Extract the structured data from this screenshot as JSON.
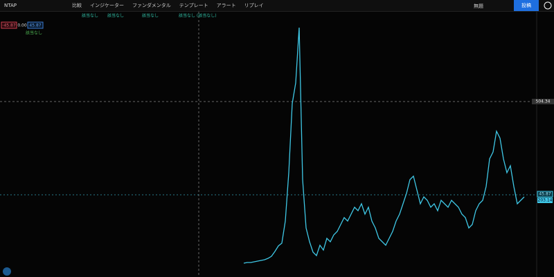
{
  "toolbar": {
    "symbol": "NTAP",
    "items": [
      "比較",
      "インジケーター",
      "ファンダメンタル",
      "テンプレート",
      "アラート",
      "リプレイ"
    ],
    "layout_name": "無題",
    "publish": "投稿"
  },
  "legend": {
    "sell": "-45.87",
    "spread": "0.00",
    "buy": "45.87",
    "indicator_values": [
      "該当なし",
      "該当なし",
      "該当なし",
      "該当なし (該当なし)"
    ],
    "sub_value": "該当なし"
  },
  "price_labels": {
    "crosshair": "504.34",
    "last": "45.87",
    "secondary": "203.14"
  },
  "chart": {
    "type": "line",
    "color": "#3fc8e6",
    "ylim": [
      0,
      385
    ],
    "values": [
      19,
      20,
      20,
      21,
      22,
      23,
      24,
      26,
      29,
      36,
      44,
      48,
      80,
      150,
      250,
      280,
      360,
      140,
      70,
      50,
      35,
      30,
      45,
      38,
      55,
      50,
      60,
      65,
      75,
      85,
      80,
      90,
      100,
      95,
      105,
      90,
      100,
      80,
      70,
      55,
      50,
      45,
      55,
      65,
      80,
      90,
      105,
      120,
      140,
      145,
      125,
      105,
      115,
      110,
      100,
      105,
      95,
      110,
      105,
      100,
      110,
      105,
      100,
      90,
      85,
      70,
      75,
      95,
      105,
      110,
      130,
      170,
      180,
      210,
      200,
      170,
      150,
      160,
      130,
      105,
      110,
      115
    ]
  }
}
